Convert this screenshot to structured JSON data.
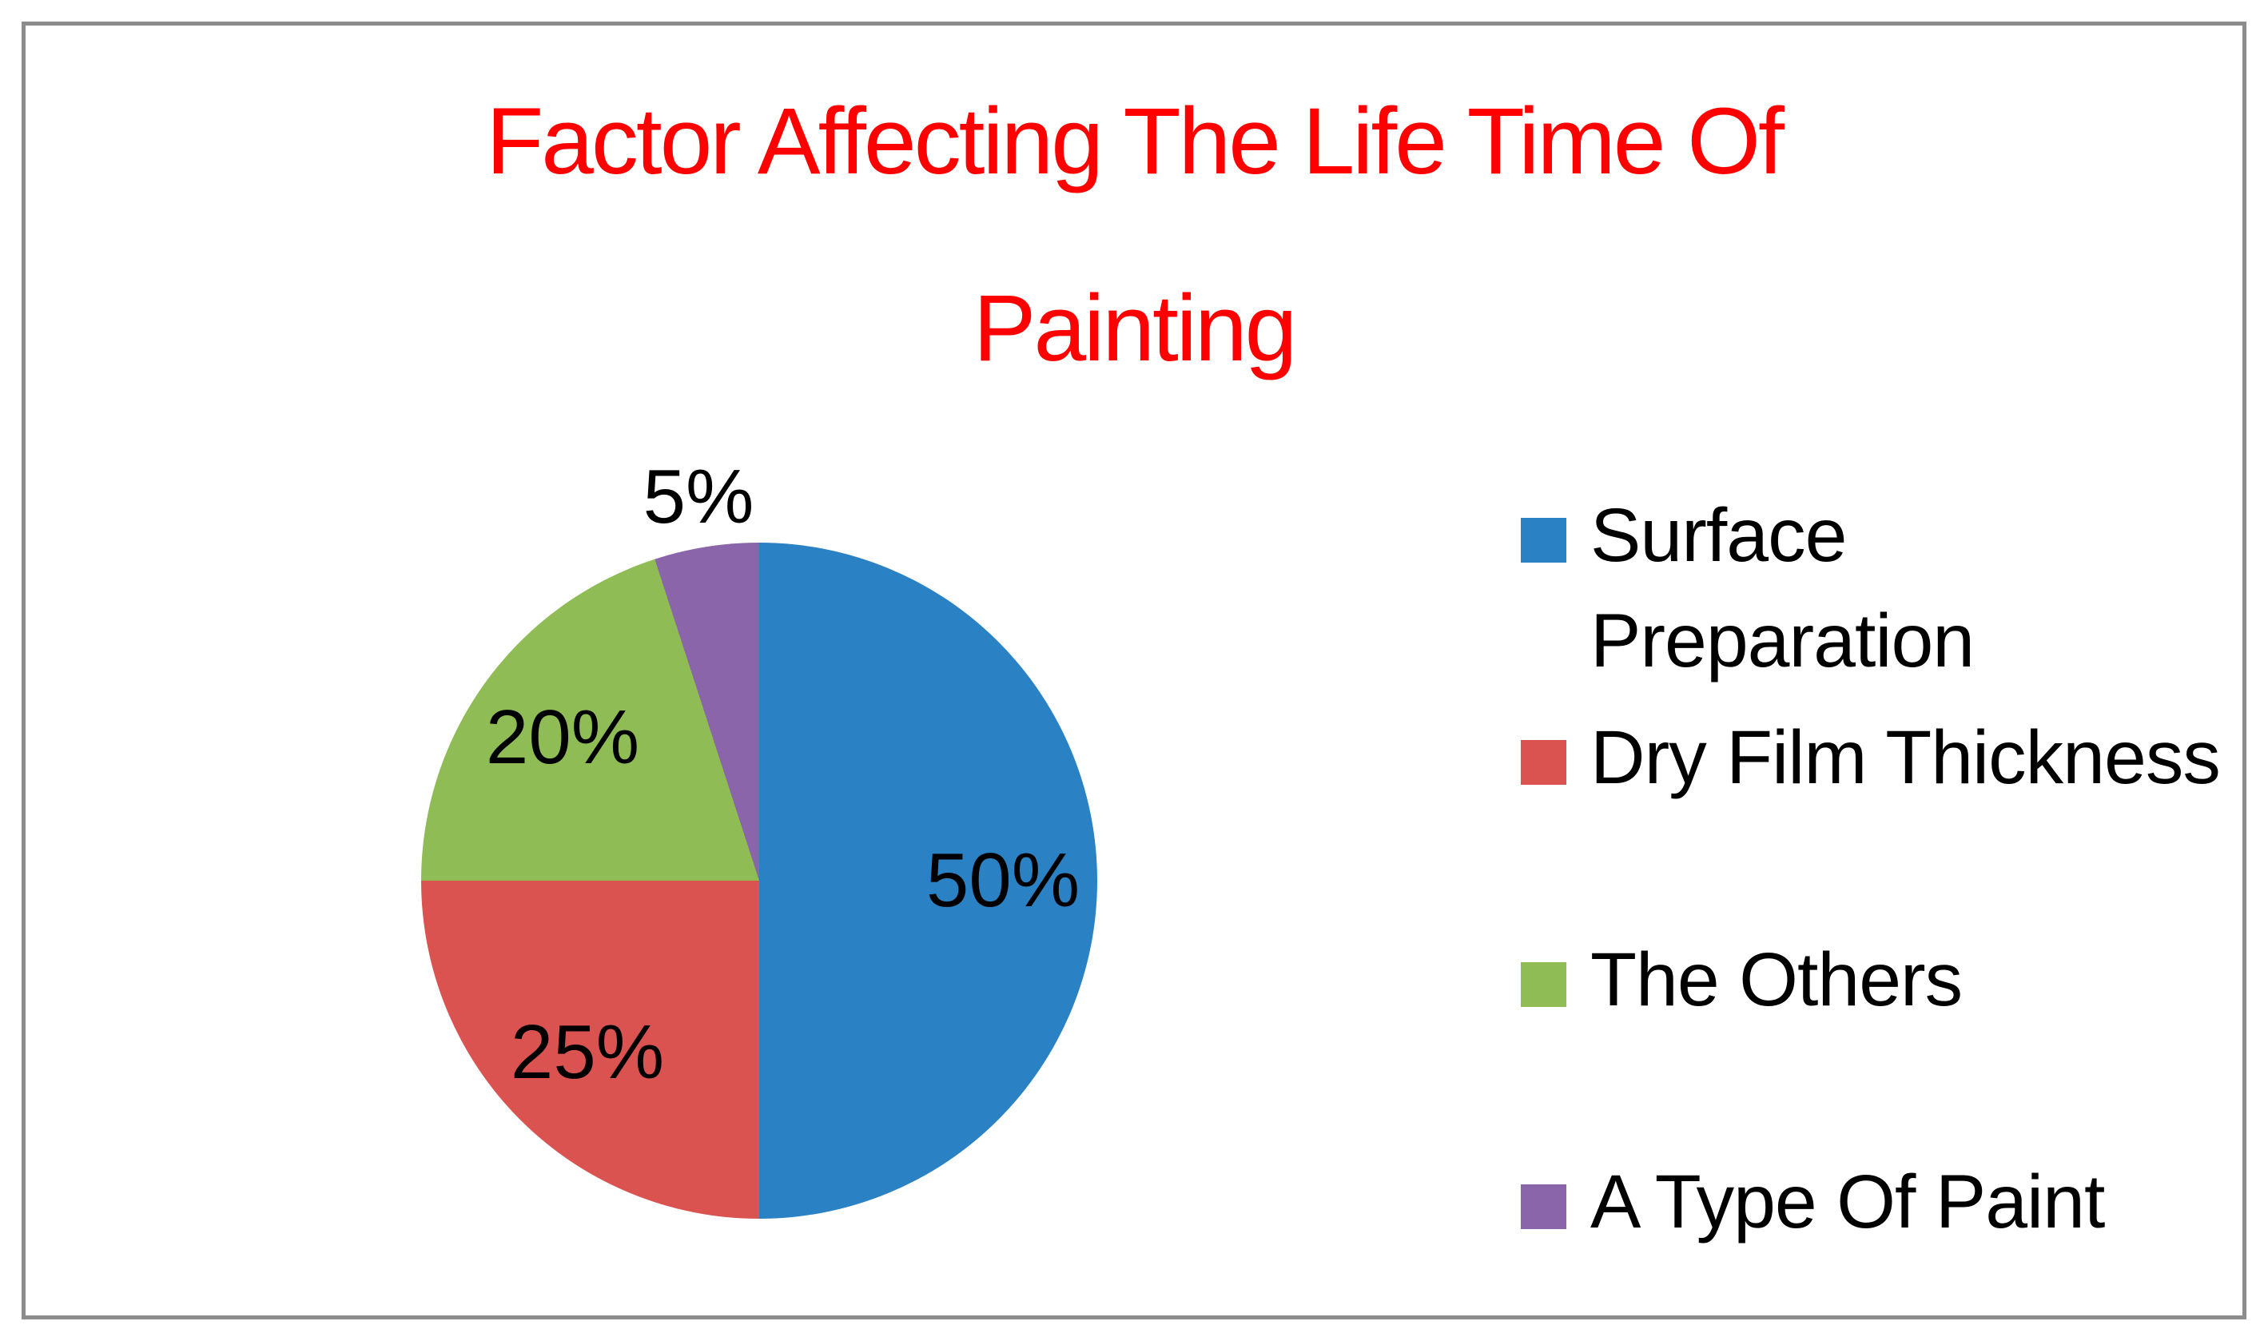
{
  "title": {
    "lines": [
      "Factor Affecting The Life Time Of",
      "Painting"
    ],
    "color": "#FF0000"
  },
  "frame": {
    "border_color": "#8C8C8C"
  },
  "chart_data": {
    "type": "pie",
    "title": "Factor Affecting The Life Time Of Painting",
    "direction": "clockwise",
    "start_angle_deg": 0,
    "legend_position": "right",
    "data_labels": "percent",
    "series": [
      {
        "name": "Surface Preparation",
        "value": 50,
        "percent_label": "50%",
        "color": "#2A81C3",
        "legend_label": "Surface\nPreparation"
      },
      {
        "name": "Dry Film Thickness",
        "value": 25,
        "percent_label": "25%",
        "color": "#DA5350",
        "legend_label": "Dry Film Thickness"
      },
      {
        "name": "The Others",
        "value": 20,
        "percent_label": "20%",
        "color": "#8FBC55",
        "legend_label": "The Others"
      },
      {
        "name": "A Type Of Paint",
        "value": 5,
        "percent_label": "5%",
        "color": "#8B65A9",
        "legend_label": "A Type Of Paint"
      }
    ]
  }
}
